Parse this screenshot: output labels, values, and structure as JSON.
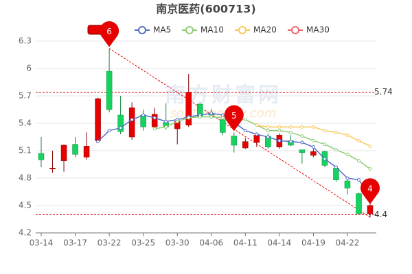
{
  "chart_data": {
    "type": "candlestick",
    "title": "南京医药(600713)",
    "watermark": "南方财富网",
    "watermark_sub": "southmoney.com",
    "categories": [
      "03-14",
      null,
      null,
      "03-17",
      null,
      null,
      "03-22",
      null,
      null,
      "03-25",
      null,
      null,
      "03-30",
      null,
      null,
      "04-06",
      null,
      null,
      "04-11",
      null,
      null,
      "04-14",
      null,
      null,
      "04-19",
      null,
      null,
      "04-22",
      null,
      null
    ],
    "ylim": [
      4.2,
      6.3
    ],
    "yticks": [
      4.2,
      4.5,
      4.8,
      5.1,
      5.4,
      5.7,
      6,
      6.3
    ],
    "grid": true,
    "reference_lines": [
      5.74,
      4.4
    ],
    "annotations": [
      "6",
      "5",
      "4"
    ],
    "candles": {
      "name": "K",
      "up_color": "#e60000",
      "down_color": "#14d35f",
      "open": [
        5.07,
        4.9,
        4.99,
        5.17,
        5.03,
        5.21,
        5.97,
        5.49,
        5.25,
        5.49,
        5.36,
        5.41,
        5.34,
        5.38,
        5.61,
        5.51,
        5.44,
        5.26,
        5.13,
        5.19,
        5.26,
        5.14,
        5.21,
        5.11,
        5.05,
        5.09,
        4.91,
        4.77,
        4.63,
        4.41
      ],
      "high": [
        5.25,
        5.1,
        5.17,
        5.25,
        5.3,
        5.68,
        6.22,
        5.7,
        5.63,
        5.55,
        5.57,
        5.62,
        5.46,
        5.94,
        5.62,
        5.56,
        5.47,
        5.3,
        5.24,
        5.3,
        5.29,
        5.29,
        5.27,
        5.11,
        5.12,
        5.1,
        4.92,
        4.79,
        4.64,
        4.55
      ],
      "low": [
        4.92,
        4.86,
        4.87,
        5.03,
        5.0,
        5.19,
        5.52,
        5.28,
        5.22,
        5.32,
        5.33,
        5.33,
        5.17,
        5.36,
        5.46,
        5.45,
        5.27,
        5.08,
        5.12,
        5.14,
        5.12,
        5.12,
        5.15,
        4.96,
        5.03,
        4.92,
        4.76,
        4.62,
        4.4,
        4.37
      ],
      "close": [
        5.0,
        4.91,
        5.16,
        5.06,
        5.15,
        5.67,
        5.55,
        5.31,
        5.57,
        5.36,
        5.5,
        5.36,
        5.42,
        5.74,
        5.47,
        5.49,
        5.3,
        5.16,
        5.2,
        5.27,
        5.14,
        5.27,
        5.16,
        5.08,
        5.09,
        4.94,
        4.78,
        4.69,
        4.41,
        4.5
      ]
    },
    "series": [
      {
        "name": "MA5",
        "color": "#5470c6",
        "values": [
          null,
          null,
          null,
          null,
          null,
          5.2,
          5.32,
          5.35,
          5.44,
          5.49,
          5.46,
          5.42,
          5.44,
          5.47,
          5.49,
          5.51,
          5.49,
          5.41,
          5.32,
          5.28,
          5.25,
          5.21,
          5.2,
          5.19,
          5.14,
          5.01,
          4.92,
          4.8,
          4.78,
          4.61
        ]
      },
      {
        "name": "MA10",
        "color": "#91cc75",
        "values": [
          null,
          null,
          null,
          null,
          null,
          null,
          null,
          null,
          null,
          null,
          5.34,
          5.36,
          5.42,
          5.46,
          5.47,
          5.47,
          5.46,
          5.45,
          5.44,
          5.38,
          5.32,
          5.32,
          5.3,
          5.26,
          5.21,
          5.17,
          5.11,
          5.06,
          4.99,
          4.9
        ]
      },
      {
        "name": "MA20",
        "color": "#fac858",
        "values": [
          null,
          null,
          null,
          null,
          null,
          null,
          null,
          null,
          null,
          null,
          null,
          null,
          null,
          null,
          null,
          null,
          null,
          null,
          null,
          5.38,
          5.36,
          5.36,
          5.36,
          5.36,
          5.36,
          5.32,
          5.3,
          5.27,
          5.21,
          5.15
        ]
      },
      {
        "name": "MA30",
        "color": "#ee6666",
        "values": [
          null,
          null,
          null,
          null,
          null,
          null,
          null,
          null,
          null,
          null,
          null,
          null,
          null,
          null,
          null,
          null,
          null,
          null,
          null,
          null,
          null,
          null,
          null,
          null,
          null,
          null,
          null,
          null,
          null,
          null
        ]
      }
    ]
  }
}
